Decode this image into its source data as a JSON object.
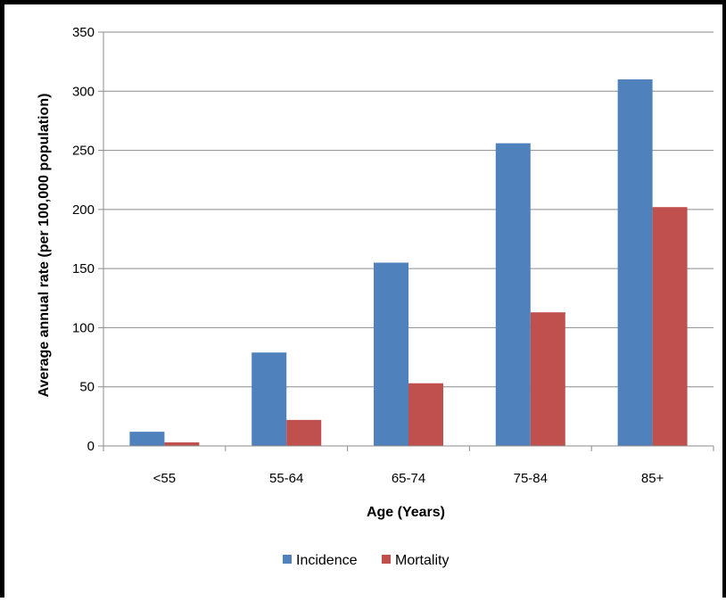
{
  "chart_data": {
    "type": "bar",
    "title": "",
    "xlabel": "Age (Years)",
    "ylabel": "Average annual rate (per 100,000 population)",
    "categories": [
      "<55",
      "55-64",
      "65-74",
      "75-84",
      "85+"
    ],
    "series": [
      {
        "name": "Incidence",
        "color": "#4F81BD",
        "values": [
          12,
          79,
          155,
          256,
          310
        ]
      },
      {
        "name": "Mortality",
        "color": "#C0504D",
        "values": [
          3,
          22,
          53,
          113,
          202
        ]
      }
    ],
    "ylim": [
      0,
      350
    ],
    "yticks": [
      "0",
      "50",
      "100",
      "150",
      "200",
      "250",
      "300",
      "350"
    ],
    "grid": true,
    "legend": "bottom"
  }
}
